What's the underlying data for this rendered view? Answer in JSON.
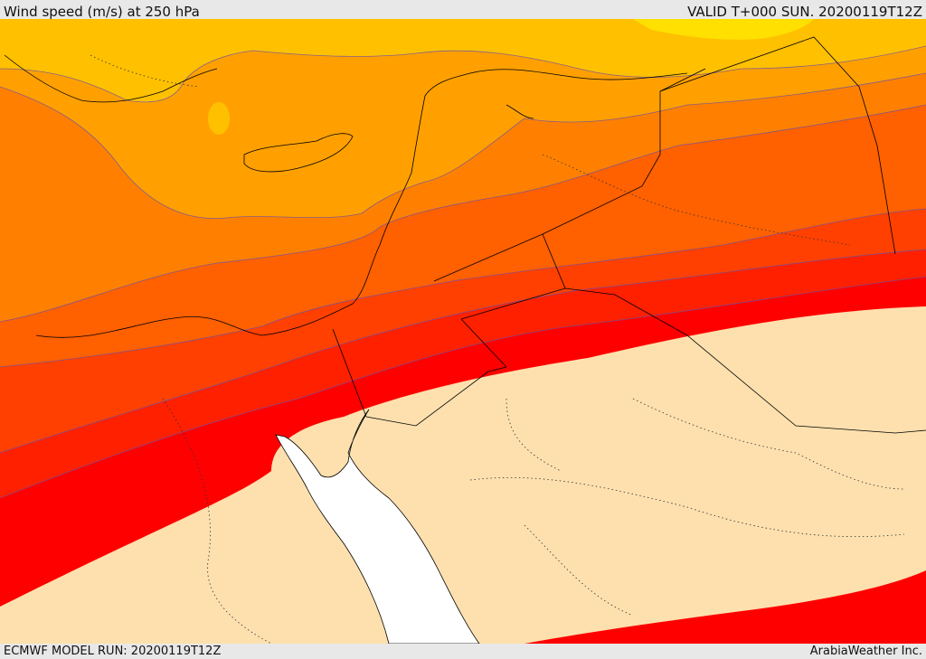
{
  "header": {
    "title": "Wind speed (m/s) at 250 hPa",
    "valid_time": "VALID T+000 SUN. 20200119T12Z"
  },
  "footer": {
    "model_run": "ECMWF MODEL RUN: 20200119T12Z",
    "credit": "ArabiaWeather Inc."
  },
  "map": {
    "variable": "wind speed",
    "level": "250 hPa",
    "palette": {
      "land_calm": "#fde0ae",
      "sea": "#ffffff",
      "band_1": "#ffe000",
      "band_2": "#ffc000",
      "band_3": "#ffa000",
      "band_4": "#ff8000",
      "band_5": "#ff6000",
      "band_6": "#ff4000",
      "band_7": "#ff2000",
      "band_8": "#ff0000"
    }
  }
}
